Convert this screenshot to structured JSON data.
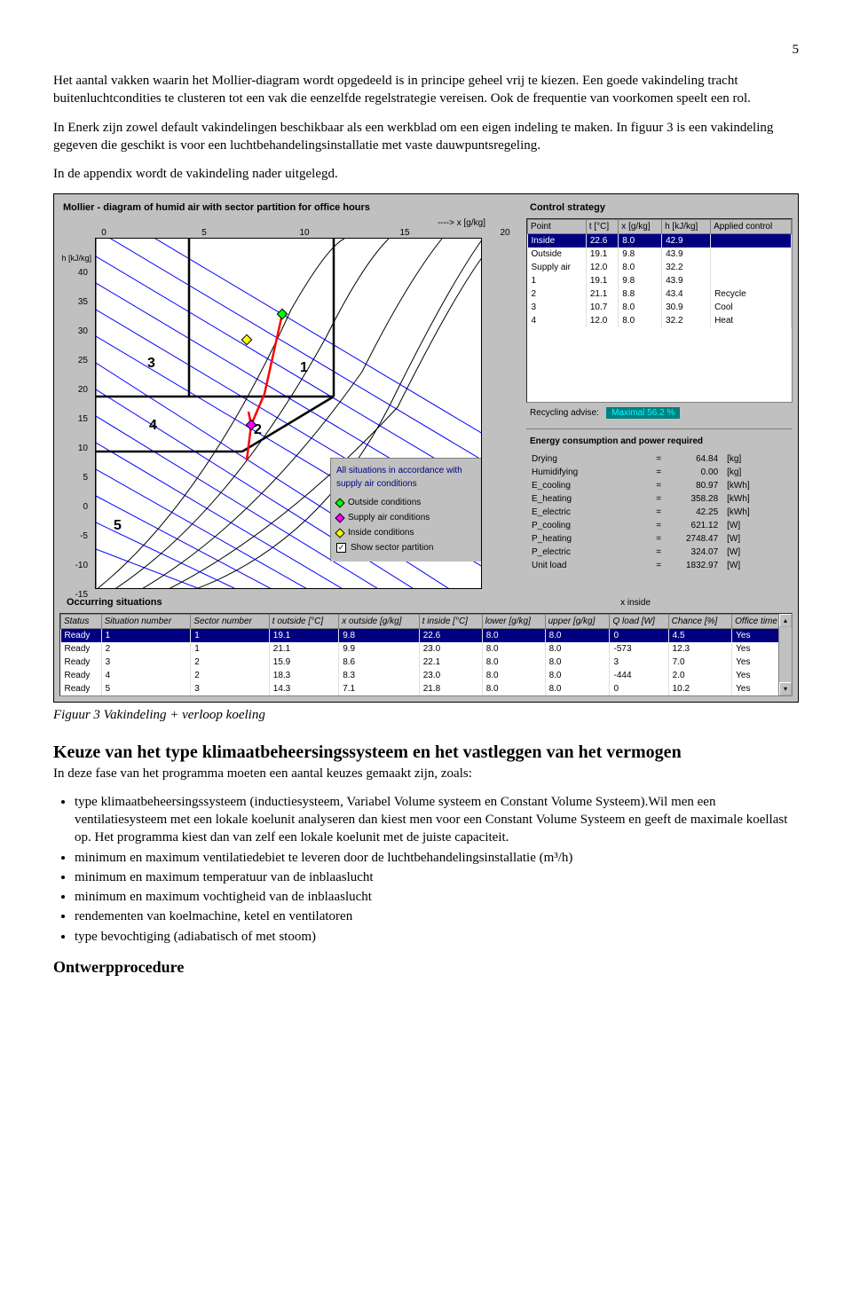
{
  "page_number": "5",
  "para1": "Het aantal vakken waarin het Mollier-diagram wordt opgedeeld is in principe geheel vrij te kiezen. Een goede vakindeling tracht buitenluchtcondities te clusteren tot een vak die eenzelfde regelstrategie vereisen. Ook de frequentie van voorkomen speelt een rol.",
  "para2": "In Enerk zijn zowel default vakindelingen beschikbaar als een werkblad om een eigen indeling te maken. In figuur 3 is een vakindeling gegeven die geschikt is voor een luchtbehandelingsinstallatie met vaste dauwpuntsregeling.",
  "para3": "In de appendix wordt de vakindeling nader uitgelegd.",
  "fig_caption": "Figuur 3    Vakindeling + verloop koeling",
  "h2": "Keuze van het type klimaatbeheersingssysteem en het vastleggen van het vermogen",
  "after_h2": "In deze fase van het programma moeten een aantal keuzes gemaakt zijn, zoals:",
  "bullets": [
    "type klimaatbeheersingssysteem (inductiesysteem, Variabel Volume systeem en Constant Volume Systeem).Wil men een ventilatiesysteem met een lokale koelunit analyseren dan kiest men voor een Constant Volume Systeem en geeft de maximale koellast op. Het programma kiest dan van zelf een lokale koelunit met de juiste capaciteit.",
    "minimum en maximum ventilatiedebiet te leveren door de luchtbehandelingsinstallatie (m³/h)",
    "minimum en maximum temperatuur van de inblaaslucht",
    "minimum en maximum vochtigheid van de inblaaslucht",
    "rendementen van koelmachine, ketel en ventilatoren",
    "type bevochtiging (adiabatisch of met stoom)"
  ],
  "h3": "Ontwerpprocedure",
  "app": {
    "chart_title": "Mollier - diagram of humid air with sector partition for office hours",
    "x_axis_label": "----> x [g/kg]",
    "y_axis_label": "h [kJ/kg]",
    "x_ticks": [
      "0",
      "5",
      "10",
      "15",
      "20"
    ],
    "y_ticks": [
      "40",
      "35",
      "30",
      "25",
      "20",
      "15",
      "10",
      "5",
      "0",
      "-5",
      "-10",
      "-15"
    ],
    "colors": {
      "bg": "#c0c0c0",
      "plot_bg": "#ffffff",
      "grid": "#000000",
      "enthalpy_lines": "#0000ff",
      "sector_lines": "#000000",
      "process_path": "#ff0000",
      "selection": "#000080"
    },
    "sector_labels": [
      "1",
      "2",
      "3",
      "4",
      "5"
    ],
    "legend": {
      "text1": "All situations in accordance with supply air conditions",
      "items": [
        {
          "label": "Outside conditions",
          "color": "#00ff00"
        },
        {
          "label": "Supply air conditions",
          "color": "#ff00ff"
        },
        {
          "label": "Inside conditions",
          "color": "#ffff00"
        }
      ],
      "checkbox": "Show sector partition",
      "checkbox_checked": true
    },
    "control_strategy": {
      "title": "Control strategy",
      "headers": [
        "Point",
        "t [°C]",
        "x [g/kg]",
        "h [kJ/kg]",
        "Applied control"
      ],
      "rows": [
        {
          "sel": true,
          "cells": [
            "Inside",
            "22.6",
            "8.0",
            "42.9",
            ""
          ]
        },
        {
          "sel": false,
          "cells": [
            "Outside",
            "19.1",
            "9.8",
            "43.9",
            ""
          ]
        },
        {
          "sel": false,
          "cells": [
            "Supply air",
            "12.0",
            "8.0",
            "32.2",
            ""
          ]
        },
        {
          "sel": false,
          "cells": [
            "1",
            "19.1",
            "9.8",
            "43.9",
            ""
          ]
        },
        {
          "sel": false,
          "cells": [
            "2",
            "21.1",
            "8.8",
            "43.4",
            "Recycle"
          ]
        },
        {
          "sel": false,
          "cells": [
            "3",
            "10.7",
            "8.0",
            "30.9",
            "Cool"
          ]
        },
        {
          "sel": false,
          "cells": [
            "4",
            "12.0",
            "8.0",
            "32.2",
            "Heat"
          ]
        }
      ]
    },
    "recycling": {
      "label": "Recycling advise:",
      "value": "Maximal  56.2 %"
    },
    "energy": {
      "title": "Energy consumption and power required",
      "rows": [
        [
          "Drying",
          "=",
          "64.84",
          "[kg]"
        ],
        [
          "Humidifying",
          "=",
          "0.00",
          "[kg]"
        ],
        [
          "E_cooling",
          "=",
          "80.97",
          "[kWh]"
        ],
        [
          "E_heating",
          "=",
          "358.28",
          "[kWh]"
        ],
        [
          "E_electric",
          "=",
          "42.25",
          "[kWh]"
        ],
        [
          "P_cooling",
          "=",
          "621.12",
          "[W]"
        ],
        [
          "P_heating",
          "=",
          "2748.47",
          "[W]"
        ],
        [
          "P_electric",
          "=",
          "324.07",
          "[W]"
        ],
        [
          "Unit load",
          "=",
          "1832.97",
          "[W]"
        ]
      ]
    },
    "occurring": {
      "title": "Occurring situations",
      "x_inside_label": "x inside",
      "headers": [
        "Status",
        "Situation number",
        "Sector number",
        "t outside [°C]",
        "x outside [g/kg]",
        "t inside [°C]",
        "lower [g/kg]",
        "upper [g/kg]",
        "Q load [W]",
        "Chance [%]",
        "Office time"
      ],
      "rows": [
        {
          "sel": true,
          "cells": [
            "Ready",
            "1",
            "1",
            "19.1",
            "9.8",
            "22.6",
            "8.0",
            "8.0",
            "0",
            "4.5",
            "Yes"
          ]
        },
        {
          "sel": false,
          "cells": [
            "Ready",
            "2",
            "1",
            "21.1",
            "9.9",
            "23.0",
            "8.0",
            "8.0",
            "-573",
            "12.3",
            "Yes"
          ]
        },
        {
          "sel": false,
          "cells": [
            "Ready",
            "3",
            "2",
            "15.9",
            "8.6",
            "22.1",
            "8.0",
            "8.0",
            "3",
            "7.0",
            "Yes"
          ]
        },
        {
          "sel": false,
          "cells": [
            "Ready",
            "4",
            "2",
            "18.3",
            "8.3",
            "23.0",
            "8.0",
            "8.0",
            "-444",
            "2.0",
            "Yes"
          ]
        },
        {
          "sel": false,
          "cells": [
            "Ready",
            "5",
            "3",
            "14.3",
            "7.1",
            "21.8",
            "8.0",
            "8.0",
            "0",
            "10.2",
            "Yes"
          ]
        }
      ]
    }
  }
}
